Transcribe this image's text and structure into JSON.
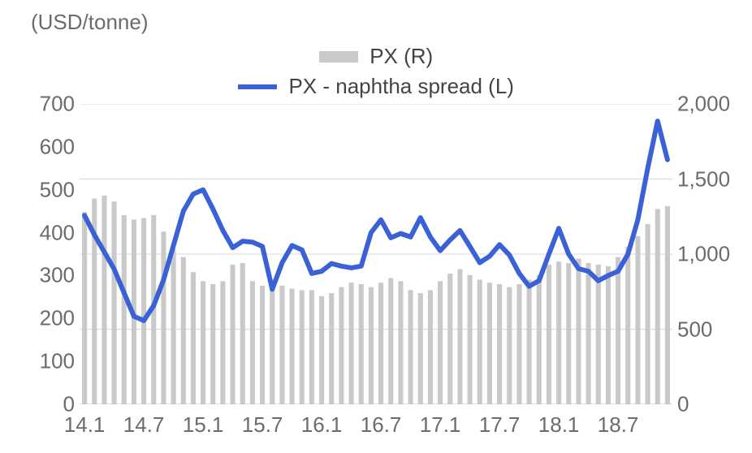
{
  "unit_label": "(USD/tonne)",
  "legend": {
    "bar_label": "PX (R)",
    "line_label": "PX - naphtha spread (L)"
  },
  "chart": {
    "type": "dual-axis-bar-line",
    "background_color": "#ffffff",
    "font_family": "Arial",
    "axis_label_fontsize": 26,
    "axis_label_color": "#6b6b6b",
    "grid_color": "#d9d9d9",
    "axis_line_color": "#bfbfbf",
    "left_axis": {
      "min": 0,
      "max": 700,
      "step": 100,
      "series": "spread"
    },
    "right_axis": {
      "min": 0,
      "max": 2000,
      "step": 500,
      "series": "px"
    },
    "x_ticks": [
      "14.1",
      "14.7",
      "15.1",
      "15.7",
      "16.1",
      "16.7",
      "17.1",
      "17.7",
      "18.1",
      "18.7"
    ],
    "x_tick_positions": [
      0,
      6,
      12,
      18,
      24,
      30,
      36,
      42,
      48,
      54
    ],
    "x_count": 60,
    "bars": {
      "color": "#c9c9c9",
      "width_ratio": 0.5,
      "values": [
        1280,
        1370,
        1390,
        1350,
        1260,
        1230,
        1240,
        1260,
        1150,
        1030,
        980,
        880,
        820,
        800,
        820,
        930,
        940,
        820,
        790,
        820,
        790,
        770,
        760,
        760,
        720,
        740,
        780,
        810,
        800,
        780,
        810,
        840,
        820,
        760,
        740,
        760,
        820,
        870,
        900,
        860,
        830,
        810,
        800,
        780,
        800,
        830,
        860,
        930,
        950,
        940,
        970,
        940,
        930,
        920,
        980,
        1050,
        1120,
        1200,
        1300,
        1320
      ]
    },
    "line": {
      "color": "#3a62d6",
      "stroke_width": 6,
      "values": [
        440,
        395,
        355,
        315,
        260,
        205,
        195,
        230,
        290,
        370,
        450,
        490,
        500,
        455,
        405,
        365,
        380,
        378,
        368,
        268,
        330,
        370,
        360,
        305,
        310,
        328,
        322,
        318,
        322,
        400,
        430,
        388,
        398,
        390,
        435,
        390,
        358,
        383,
        405,
        368,
        330,
        345,
        372,
        348,
        305,
        275,
        288,
        350,
        410,
        350,
        316,
        310,
        288,
        300,
        310,
        350,
        430,
        550,
        660,
        570
      ]
    }
  }
}
